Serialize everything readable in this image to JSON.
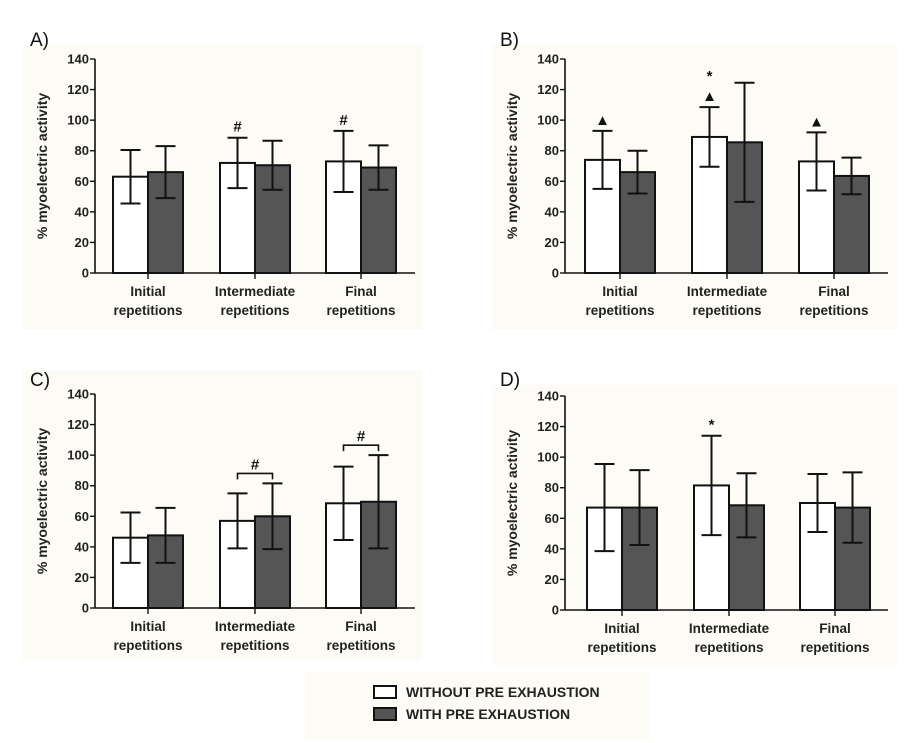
{
  "legend": {
    "items": [
      {
        "label": "WITHOUT PRE EXHAUSTION",
        "color": "#ffffff"
      },
      {
        "label": "WITH PRE EXHAUSTION",
        "color": "#555555"
      }
    ]
  },
  "chart_data": [
    {
      "type": "bar",
      "panel": "A)",
      "ylabel": "% myoelectric activity",
      "ylim": [
        0,
        140
      ],
      "yticks": [
        0,
        20,
        40,
        60,
        80,
        100,
        120,
        140
      ],
      "categories": [
        [
          "Initial",
          "repetitions"
        ],
        [
          "Intermediate",
          "repetitions"
        ],
        [
          "Final",
          "repetitions"
        ]
      ],
      "series": [
        {
          "name": "WITHOUT PRE EXHAUSTION",
          "values": [
            63,
            72,
            73
          ],
          "errors": [
            17.5,
            16.5,
            20
          ]
        },
        {
          "name": "WITH PRE EXHAUSTION",
          "values": [
            66,
            70.5,
            69
          ],
          "errors": [
            17,
            16,
            14.5
          ]
        }
      ],
      "annotations": [
        {
          "category": 1,
          "series": 0,
          "symbol": "#",
          "type": "above"
        },
        {
          "category": 2,
          "series": 0,
          "symbol": "#",
          "type": "above"
        }
      ]
    },
    {
      "type": "bar",
      "panel": "B)",
      "ylabel": "% myoelectric activity",
      "ylim": [
        0,
        140
      ],
      "yticks": [
        0,
        20,
        40,
        60,
        80,
        100,
        120,
        140
      ],
      "categories": [
        [
          "Initial",
          "repetitions"
        ],
        [
          "Intermediate",
          "repetitions"
        ],
        [
          "Final",
          "repetitions"
        ]
      ],
      "series": [
        {
          "name": "WITHOUT PRE EXHAUSTION",
          "values": [
            74,
            89,
            73
          ],
          "errors": [
            19,
            19.5,
            19
          ]
        },
        {
          "name": "WITH PRE EXHAUSTION",
          "values": [
            66,
            85.5,
            63.5
          ],
          "errors": [
            14,
            39,
            12
          ]
        }
      ],
      "annotations": [
        {
          "category": 0,
          "series": 0,
          "symbol": "▲",
          "type": "above"
        },
        {
          "category": 1,
          "series": 0,
          "symbol": "▲",
          "type": "above"
        },
        {
          "category": 1,
          "series": 0,
          "symbol": "*",
          "type": "above2"
        },
        {
          "category": 2,
          "series": 0,
          "symbol": "▲",
          "type": "above"
        }
      ]
    },
    {
      "type": "bar",
      "panel": "C)",
      "ylabel": "% myoelectric activity",
      "ylim": [
        0,
        140
      ],
      "yticks": [
        0,
        20,
        40,
        60,
        80,
        100,
        120,
        140
      ],
      "categories": [
        [
          "Initial",
          "repetitions"
        ],
        [
          "Intermediate",
          "repetitions"
        ],
        [
          "Final",
          "repetitions"
        ]
      ],
      "series": [
        {
          "name": "WITHOUT PRE EXHAUSTION",
          "values": [
            46,
            57,
            68.5
          ],
          "errors": [
            16.5,
            18,
            24
          ]
        },
        {
          "name": "WITH PRE EXHAUSTION",
          "values": [
            47.5,
            60,
            69.5
          ],
          "errors": [
            18,
            21.5,
            30.5
          ]
        }
      ],
      "annotations": [
        {
          "category": 1,
          "symbol": "#",
          "type": "bracket"
        },
        {
          "category": 2,
          "symbol": "#",
          "type": "bracket"
        }
      ]
    },
    {
      "type": "bar",
      "panel": "D)",
      "ylabel": "% myoelectric activity",
      "ylim": [
        0,
        140
      ],
      "yticks": [
        0,
        20,
        40,
        60,
        80,
        100,
        120,
        140
      ],
      "categories": [
        [
          "Initial",
          "repetitions"
        ],
        [
          "Intermediate",
          "repetitions"
        ],
        [
          "Final",
          "repetitions"
        ]
      ],
      "series": [
        {
          "name": "WITHOUT PRE EXHAUSTION",
          "values": [
            67,
            81.5,
            70
          ],
          "errors": [
            28.5,
            32.5,
            19
          ]
        },
        {
          "name": "WITH PRE EXHAUSTION",
          "values": [
            67,
            68.5,
            67
          ],
          "errors": [
            24.5,
            21,
            23
          ]
        }
      ],
      "annotations": [
        {
          "category": 1,
          "series": 0,
          "symbol": "*",
          "type": "above"
        }
      ]
    }
  ]
}
